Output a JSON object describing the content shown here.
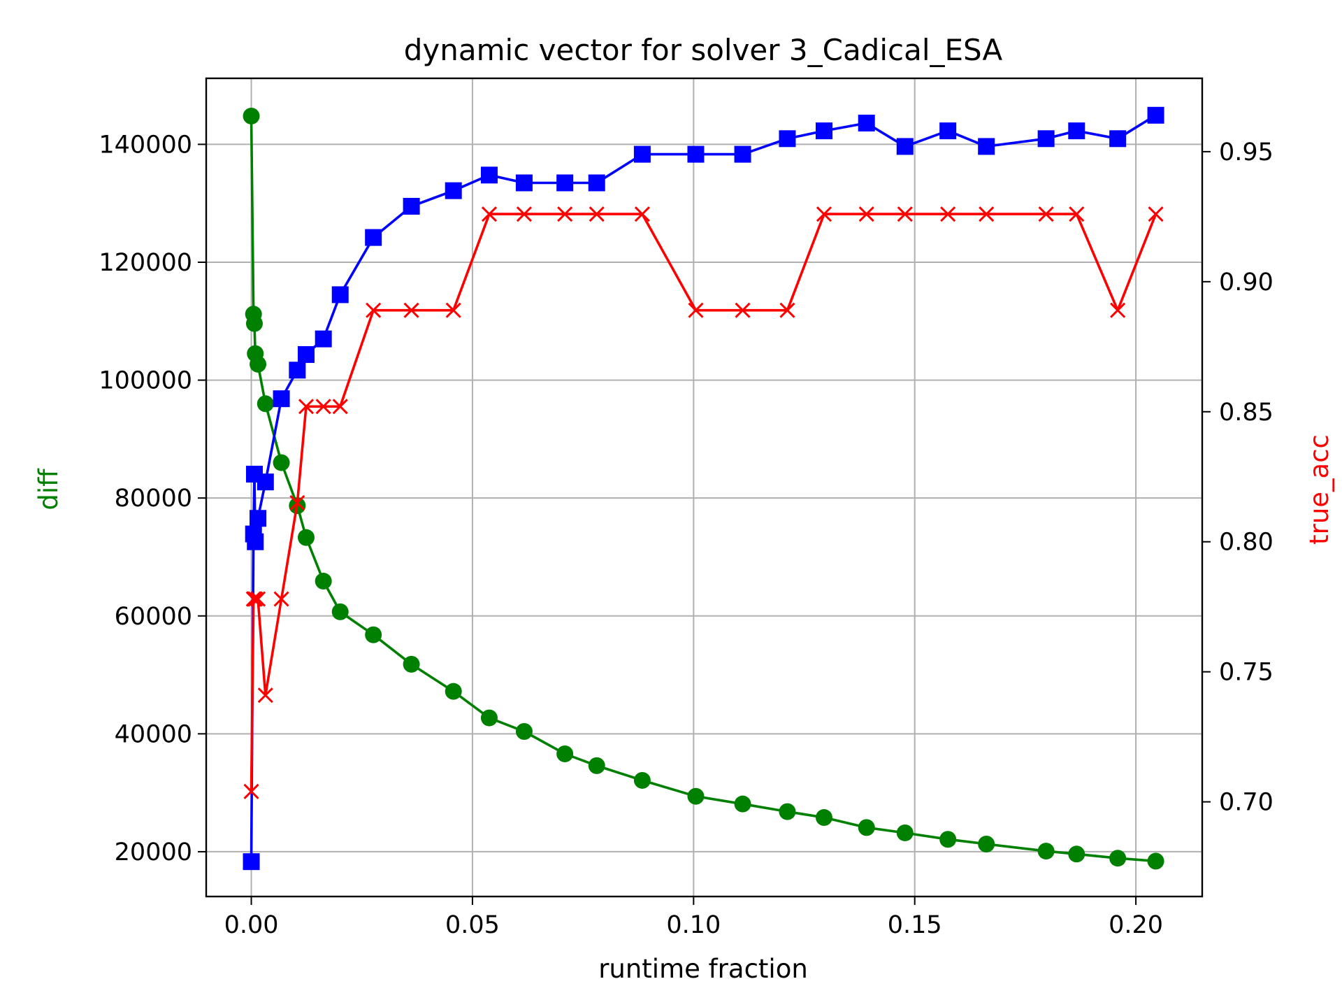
{
  "chart_data": {
    "type": "line",
    "title": "dynamic vector for solver 3_Cadical_ESA",
    "xlabel": "runtime fraction",
    "ylabel_left": "diff",
    "ylabel_right": "true_acc",
    "xlim": [
      -0.0102,
      0.215
    ],
    "ylim_left": [
      12400,
      151200
    ],
    "ylim_right": [
      0.6636,
      0.9782
    ],
    "x_ticks": [
      0.0,
      0.05,
      0.1,
      0.15,
      0.2
    ],
    "x_tick_labels": [
      "0.00",
      "0.05",
      "0.10",
      "0.15",
      "0.20"
    ],
    "y_left_ticks": [
      20000,
      40000,
      60000,
      80000,
      100000,
      120000,
      140000
    ],
    "y_left_tick_labels": [
      "20000",
      "40000",
      "60000",
      "80000",
      "100000",
      "120000",
      "140000"
    ],
    "y_right_ticks": [
      0.7,
      0.75,
      0.8,
      0.85,
      0.9,
      0.95
    ],
    "y_right_tick_labels": [
      "0.70",
      "0.75",
      "0.80",
      "0.85",
      "0.90",
      "0.95"
    ],
    "grid": true,
    "series": [
      {
        "axis": "left",
        "color": "#008000",
        "marker": "circle",
        "x": [
          0.0,
          0.0005,
          0.0007,
          0.0009,
          0.0015,
          0.0032,
          0.0068,
          0.0104,
          0.0124,
          0.0163,
          0.0201,
          0.0276,
          0.0362,
          0.0457,
          0.0538,
          0.0617,
          0.0709,
          0.0781,
          0.0884,
          0.1005,
          0.1111,
          0.1212,
          0.1295,
          0.1391,
          0.1478,
          0.1575,
          0.1662,
          0.1797,
          0.1866,
          0.1959,
          0.2045
        ],
        "values": [
          144800,
          111200,
          109600,
          104500,
          102700,
          96000,
          86000,
          78700,
          73300,
          65900,
          60700,
          56800,
          51800,
          47200,
          42700,
          40400,
          36600,
          34600,
          32100,
          29400,
          28100,
          26800,
          25800,
          24100,
          23200,
          22100,
          21300,
          20100,
          19600,
          18900,
          18400
        ]
      },
      {
        "axis": "right",
        "color": "#0000ff",
        "marker": "square",
        "x": [
          0.0,
          0.0005,
          0.0007,
          0.0009,
          0.0015,
          0.0032,
          0.0068,
          0.0104,
          0.0124,
          0.0163,
          0.0201,
          0.0276,
          0.0362,
          0.0457,
          0.0538,
          0.0617,
          0.0709,
          0.0781,
          0.0884,
          0.1005,
          0.1111,
          0.1212,
          0.1295,
          0.1391,
          0.1478,
          0.1575,
          0.1662,
          0.1797,
          0.1866,
          0.1959,
          0.2045
        ],
        "values": [
          0.677,
          0.803,
          0.826,
          0.8,
          0.809,
          0.823,
          0.855,
          0.866,
          0.872,
          0.878,
          0.895,
          0.917,
          0.929,
          0.935,
          0.941,
          0.938,
          0.938,
          0.938,
          0.949,
          0.949,
          0.949,
          0.955,
          0.958,
          0.961,
          0.952,
          0.958,
          0.952,
          0.955,
          0.958,
          0.955,
          0.964
        ]
      },
      {
        "axis": "right",
        "color": "#ff0000",
        "marker": "x",
        "x": [
          0.0,
          0.0005,
          0.0007,
          0.0009,
          0.0015,
          0.0032,
          0.0068,
          0.0104,
          0.0124,
          0.0163,
          0.0201,
          0.0276,
          0.0362,
          0.0457,
          0.0538,
          0.0617,
          0.0709,
          0.0781,
          0.0884,
          0.1005,
          0.1111,
          0.1212,
          0.1295,
          0.1391,
          0.1478,
          0.1575,
          0.1662,
          0.1797,
          0.1866,
          0.1959,
          0.2045
        ],
        "values": [
          0.704,
          0.778,
          0.778,
          0.778,
          0.778,
          0.741,
          0.778,
          0.815,
          0.852,
          0.852,
          0.852,
          0.889,
          0.889,
          0.889,
          0.926,
          0.926,
          0.926,
          0.926,
          0.926,
          0.889,
          0.889,
          0.889,
          0.926,
          0.926,
          0.926,
          0.926,
          0.926,
          0.926,
          0.926,
          0.889,
          0.926
        ]
      }
    ]
  }
}
